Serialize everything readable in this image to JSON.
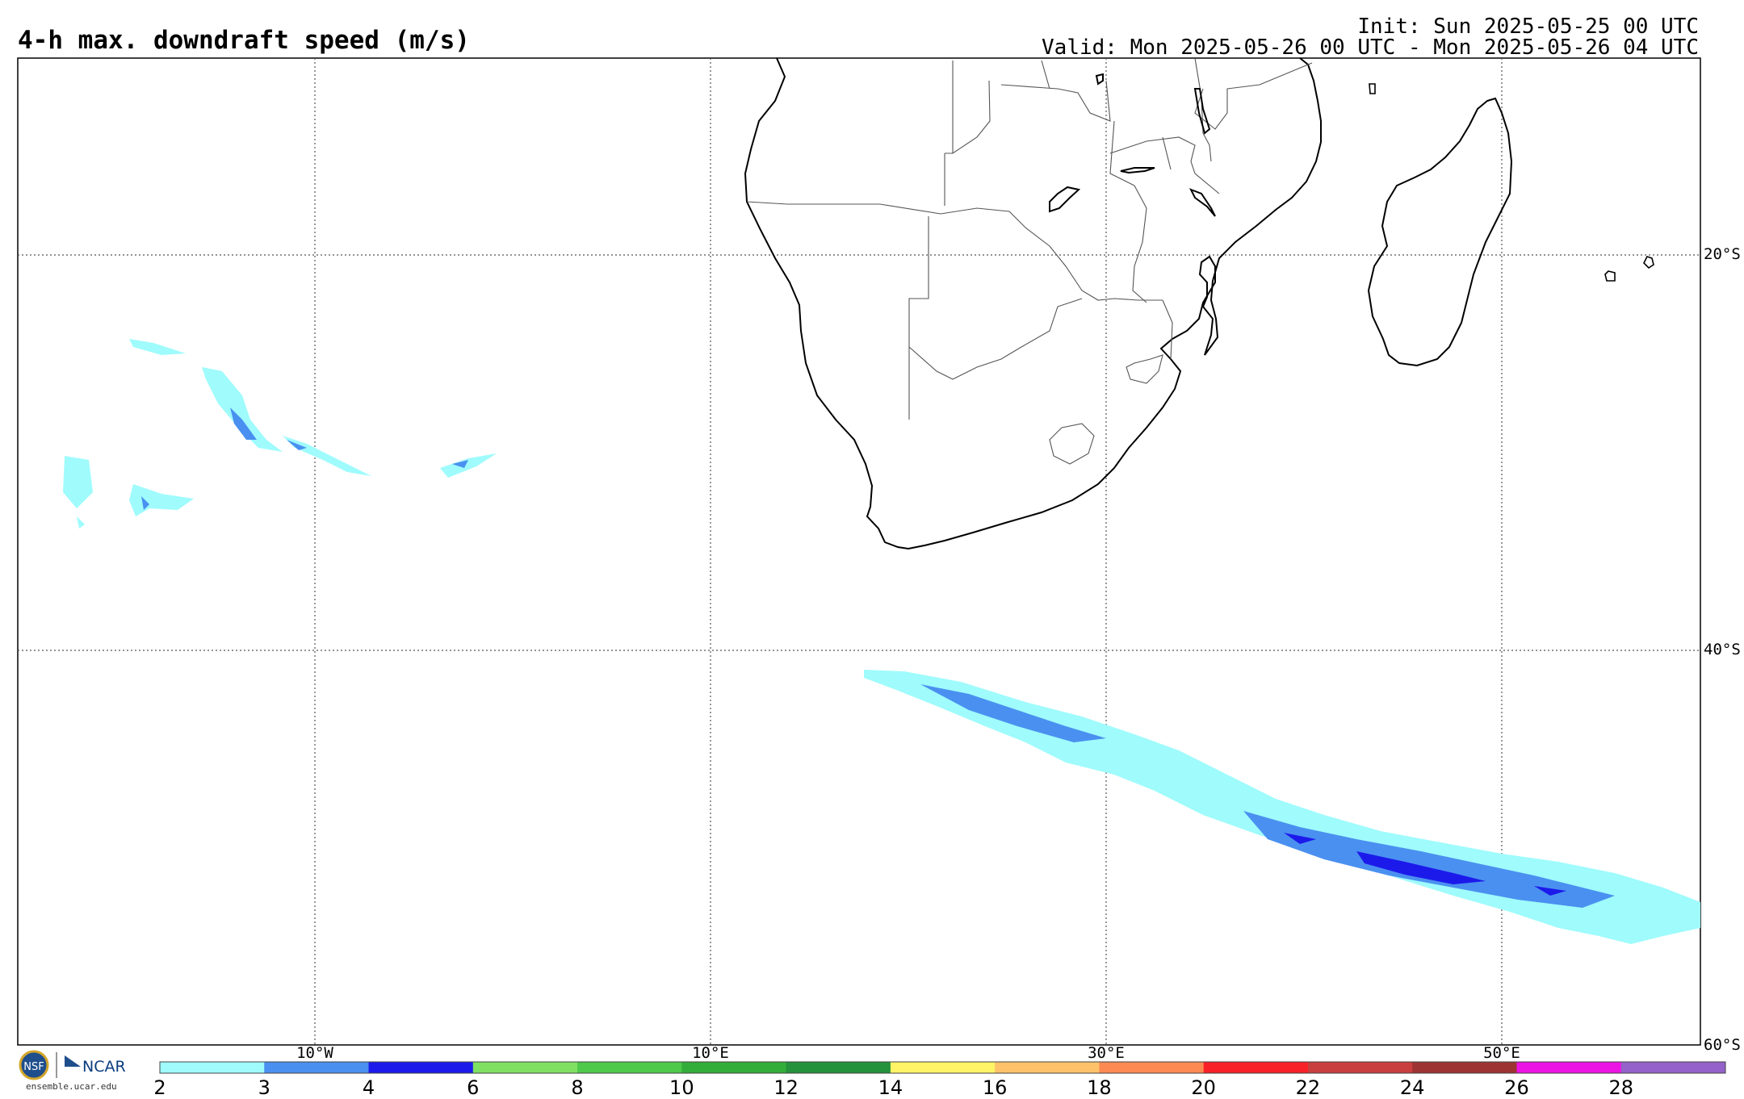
{
  "header": {
    "title": "4-h max. downdraft speed (m/s)",
    "init": "Init: Sun 2025-05-25 00 UTC",
    "valid": "Valid: Mon 2025-05-26 00 UTC - Mon 2025-05-26 04 UTC"
  },
  "map": {
    "lat_labels": [
      "20°S",
      "40°S",
      "60°S"
    ],
    "lon_labels": [
      "10°W",
      "10°E",
      "30°E",
      "50°E"
    ]
  },
  "colorbar": {
    "ticks": [
      "2",
      "3",
      "4",
      "6",
      "8",
      "10",
      "12",
      "14",
      "16",
      "18",
      "20",
      "22",
      "24",
      "26",
      "28"
    ],
    "colors": [
      "#9ffbfc",
      "#4a90f0",
      "#1c1aeb",
      "#7fe061",
      "#4fc94a",
      "#33ad3a",
      "#24913c",
      "#fef465",
      "#fec36a",
      "#fd8a53",
      "#f82127",
      "#c93f3f",
      "#9e3333",
      "#ec14e4",
      "#9462c8"
    ]
  },
  "footer": {
    "logo_text": "NCAR",
    "url": "ensemble.ucar.edu"
  }
}
